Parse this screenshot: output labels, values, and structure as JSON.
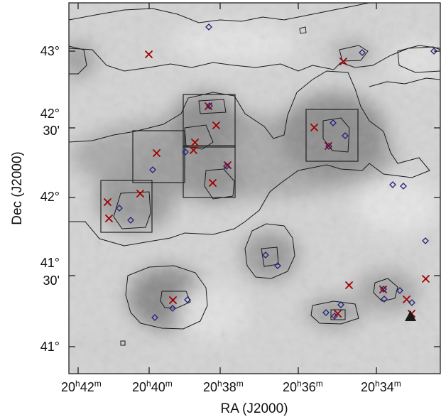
{
  "xlabel": "RA (J2000)",
  "ylabel": "Dec (J2000)",
  "x_ticks": [
    {
      "h": "20",
      "m": "42"
    },
    {
      "h": "20",
      "m": "40"
    },
    {
      "h": "20",
      "m": "38"
    },
    {
      "h": "20",
      "m": "36"
    },
    {
      "h": "20",
      "m": "34"
    }
  ],
  "y_ticks": [
    {
      "line1": "43°",
      "line2": ""
    },
    {
      "line1": "42°",
      "line2": "30'"
    },
    {
      "line1": "42°",
      "line2": ""
    },
    {
      "line1": "41°",
      "line2": "30'"
    },
    {
      "line1": "41°",
      "line2": ""
    }
  ],
  "colors": {
    "background_light": "#d4d4d4",
    "background_dark": "#7c7c7c",
    "cross": "#a00000",
    "diamond": "#22227a",
    "triangle": "#1a1a1a"
  }
}
